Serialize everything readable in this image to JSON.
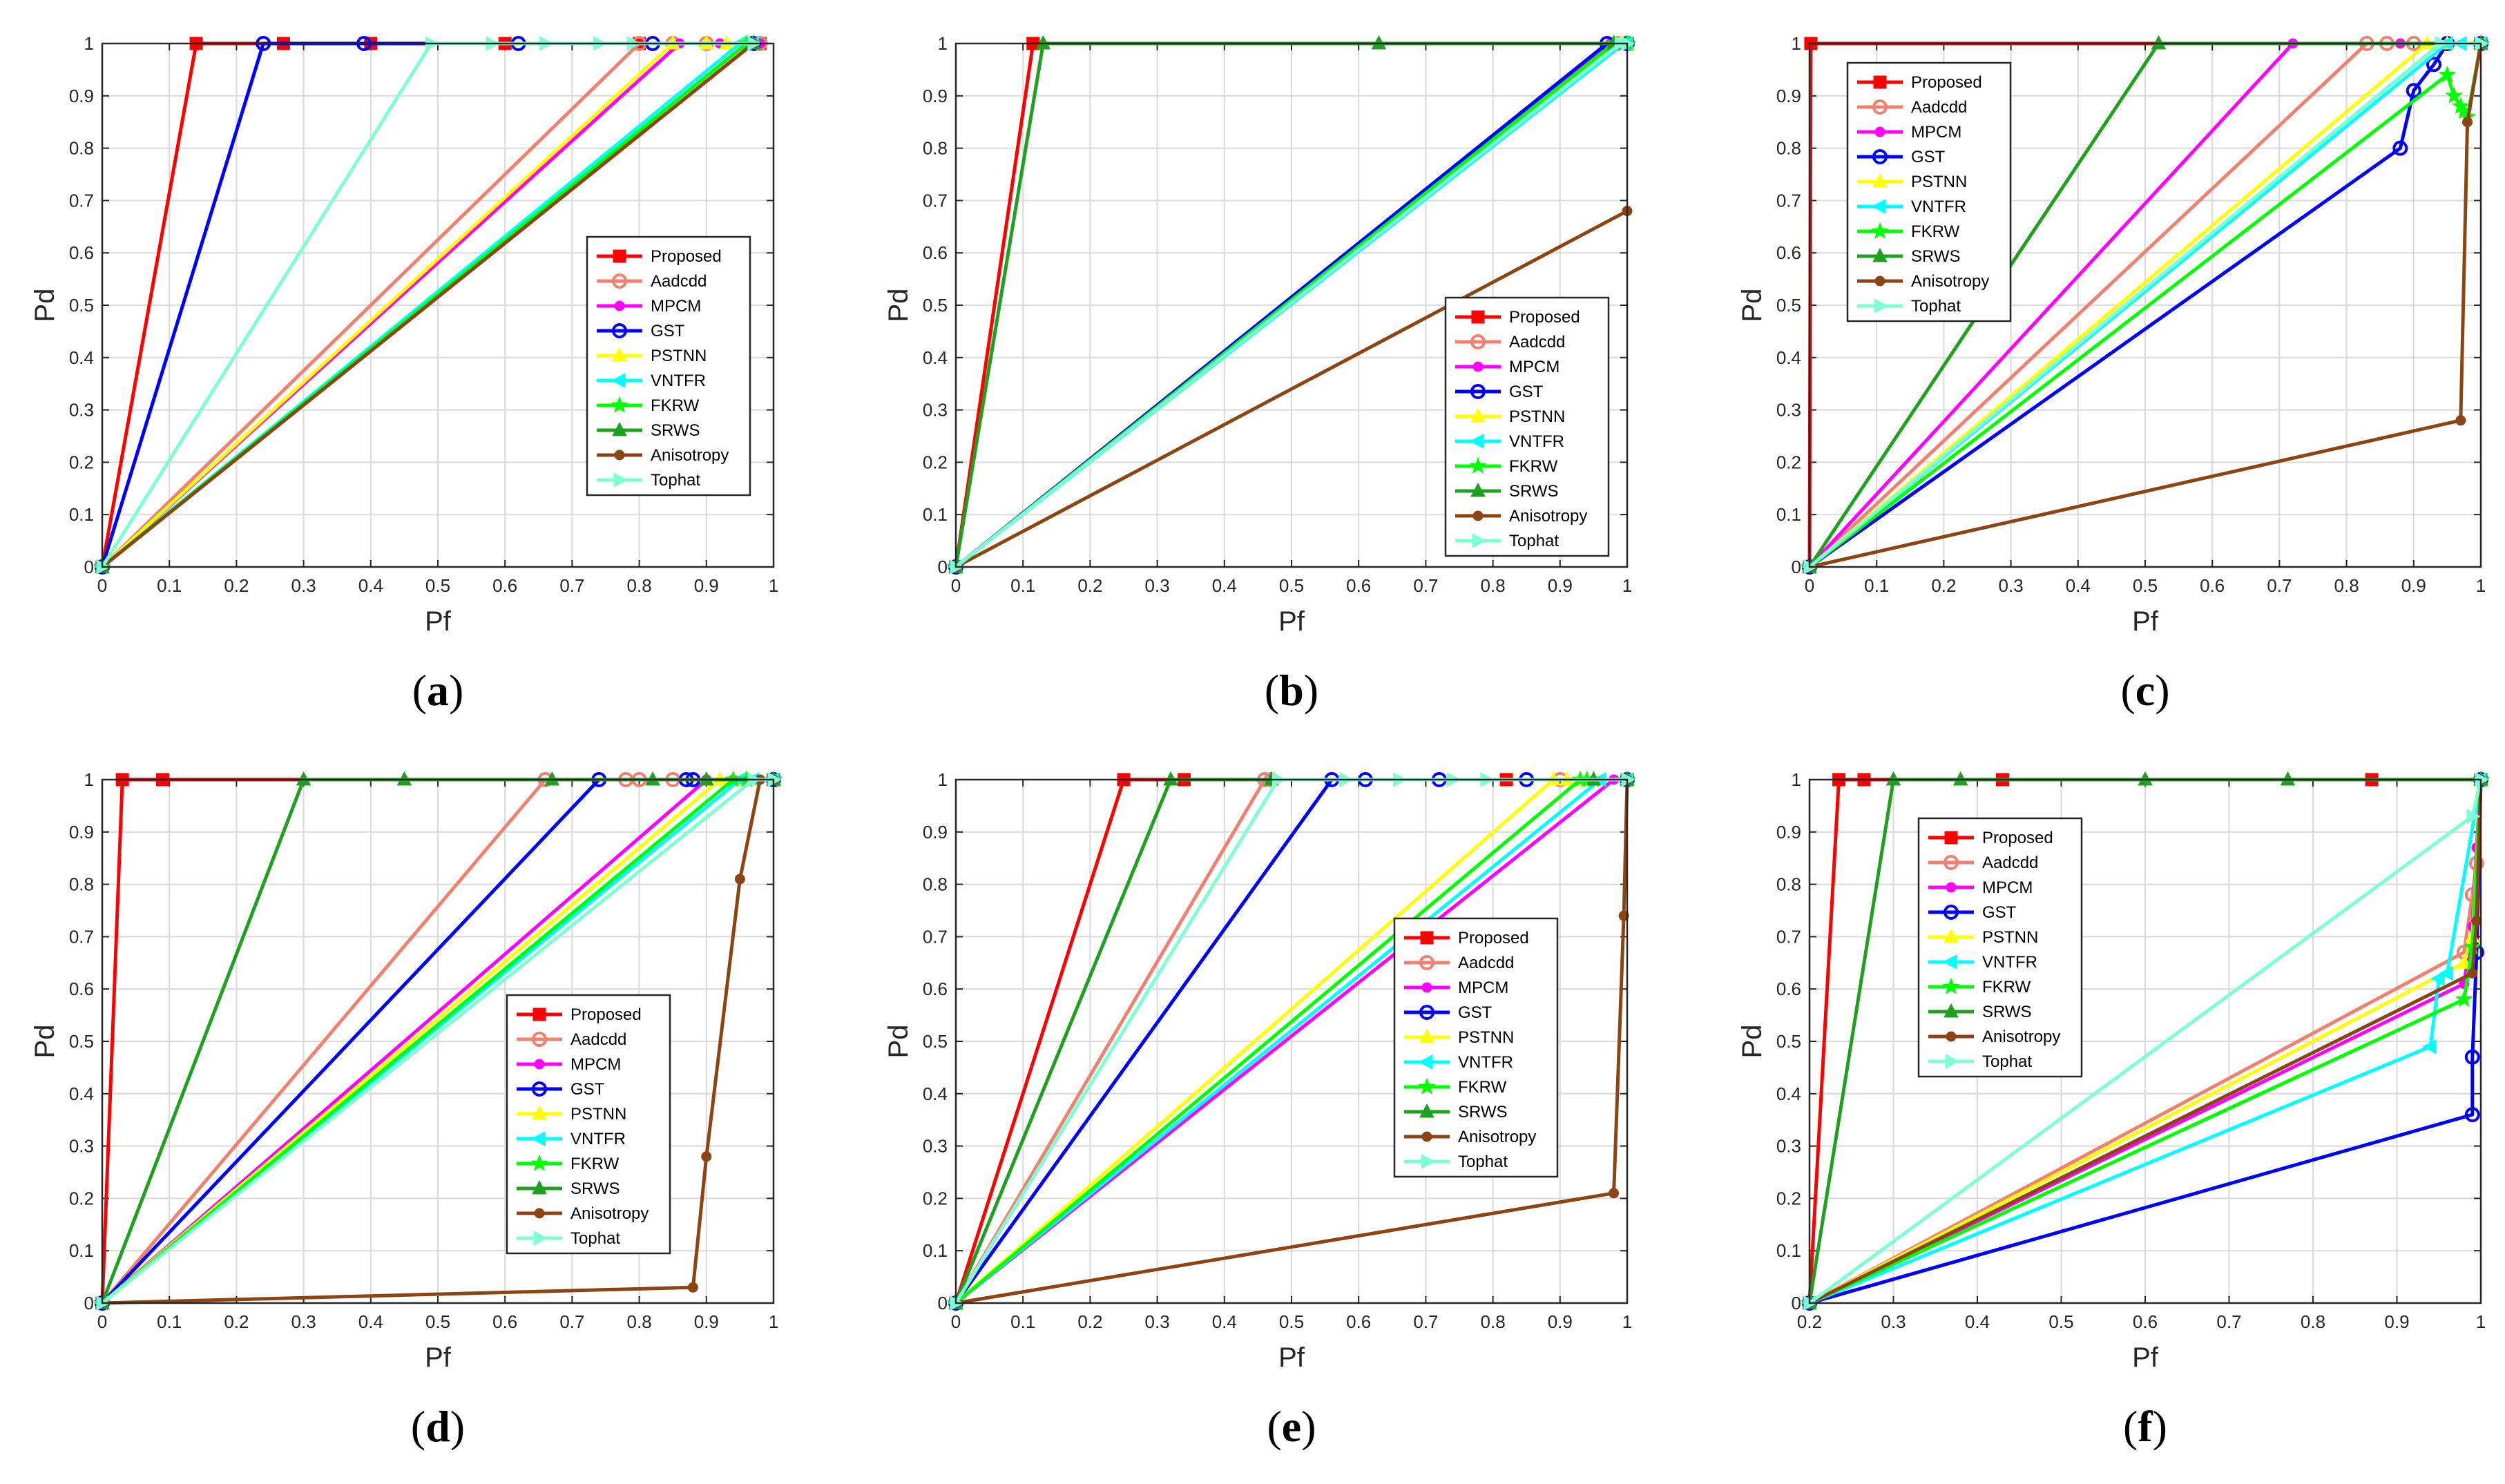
{
  "figure": {
    "series_styles": [
      {
        "name": "Proposed",
        "color": "#FF0000",
        "marker": "square"
      },
      {
        "name": "Aadcdd",
        "color": "#F08070",
        "marker": "circle"
      },
      {
        "name": "MPCM",
        "color": "#FF00FF",
        "marker": "dot"
      },
      {
        "name": "GST",
        "color": "#0000FF",
        "marker": "circle"
      },
      {
        "name": "PSTNN",
        "color": "#FFFF00",
        "marker": "triangle-up"
      },
      {
        "name": "VNTFR",
        "color": "#00FFFF",
        "marker": "triangle-left"
      },
      {
        "name": "FKRW",
        "color": "#00FF00",
        "marker": "star"
      },
      {
        "name": "SRWS",
        "color": "#20A020",
        "marker": "triangle-up"
      },
      {
        "name": "Anisotropy",
        "color": "#8B4513",
        "marker": "dot"
      },
      {
        "name": "Tophat",
        "color": "#7FFFD4",
        "marker": "triangle-right"
      }
    ]
  },
  "chart_data": [
    {
      "type": "line",
      "panel_label": "(a)",
      "xlabel": "Pf",
      "ylabel": "Pd",
      "xlim": [
        0,
        1
      ],
      "ylim": [
        0,
        1
      ],
      "xticks": [
        "0",
        "0.1",
        "0.2",
        "0.3",
        "0.4",
        "0.5",
        "0.6",
        "0.7",
        "0.8",
        "0.9",
        "1"
      ],
      "yticks": [
        "0",
        "0.1",
        "0.2",
        "0.3",
        "0.4",
        "0.5",
        "0.6",
        "0.7",
        "0.8",
        "0.9",
        "1"
      ],
      "grid": true,
      "legend_position": "center-right",
      "series": [
        {
          "name": "Proposed",
          "x": [
            0,
            0.14,
            0.27,
            0.4,
            0.6,
            0.8,
            0.98
          ],
          "y": [
            0,
            1,
            1,
            1,
            1,
            1,
            1
          ]
        },
        {
          "name": "Aadcdd",
          "x": [
            0,
            0.8,
            0.85,
            0.9,
            0.98
          ],
          "y": [
            0,
            1,
            1,
            1,
            1
          ]
        },
        {
          "name": "MPCM",
          "x": [
            0,
            0.86,
            0.92,
            0.98
          ],
          "y": [
            0,
            1,
            1,
            1
          ]
        },
        {
          "name": "GST",
          "x": [
            0,
            0.24,
            0.39,
            0.62,
            0.82,
            0.97
          ],
          "y": [
            0,
            1,
            1,
            1,
            1,
            1
          ]
        },
        {
          "name": "PSTNN",
          "x": [
            0,
            0.85,
            0.9,
            0.93,
            0.96
          ],
          "y": [
            0,
            1,
            1,
            1,
            1
          ]
        },
        {
          "name": "VNTFR",
          "x": [
            0,
            0.95,
            0.97
          ],
          "y": [
            0,
            1,
            1
          ]
        },
        {
          "name": "FKRW",
          "x": [
            0,
            0.96,
            0.97
          ],
          "y": [
            0,
            1,
            1
          ]
        },
        {
          "name": "SRWS",
          "x": [
            0,
            0.97
          ],
          "y": [
            0,
            1
          ]
        },
        {
          "name": "Anisotropy",
          "x": [
            0,
            0.97
          ],
          "y": [
            0,
            1
          ]
        },
        {
          "name": "Tophat",
          "x": [
            0,
            0.49,
            0.58,
            0.66,
            0.74,
            0.79,
            0.97
          ],
          "y": [
            0,
            1,
            1,
            1,
            1,
            1,
            1
          ]
        }
      ]
    },
    {
      "type": "line",
      "panel_label": "(b)",
      "xlabel": "Pf",
      "ylabel": "Pd",
      "xlim": [
        0,
        1
      ],
      "ylim": [
        0,
        1
      ],
      "xticks": [
        "0",
        "0.1",
        "0.2",
        "0.3",
        "0.4",
        "0.5",
        "0.6",
        "0.7",
        "0.8",
        "0.9",
        "1"
      ],
      "yticks": [
        "0",
        "0.1",
        "0.2",
        "0.3",
        "0.4",
        "0.5",
        "0.6",
        "0.7",
        "0.8",
        "0.9",
        "1"
      ],
      "grid": true,
      "legend_position": "bottom-right",
      "series": [
        {
          "name": "Proposed",
          "x": [
            0,
            0.115,
            1
          ],
          "y": [
            0,
            1,
            1
          ]
        },
        {
          "name": "Aadcdd",
          "x": [
            0,
            0.985,
            1
          ],
          "y": [
            0,
            1,
            1
          ]
        },
        {
          "name": "MPCM",
          "x": [
            0,
            0.975,
            1
          ],
          "y": [
            0,
            1,
            1
          ]
        },
        {
          "name": "GST",
          "x": [
            0,
            0.97,
            1
          ],
          "y": [
            0,
            1,
            1
          ]
        },
        {
          "name": "PSTNN",
          "x": [
            0,
            0.99,
            1
          ],
          "y": [
            0,
            1,
            1
          ]
        },
        {
          "name": "VNTFR",
          "x": [
            0,
            0.995,
            1
          ],
          "y": [
            0,
            1,
            1
          ]
        },
        {
          "name": "FKRW",
          "x": [
            0,
            0.98,
            1
          ],
          "y": [
            0,
            1,
            1
          ]
        },
        {
          "name": "SRWS",
          "x": [
            0,
            0.13,
            0.63,
            0.98
          ],
          "y": [
            0,
            1,
            1,
            1
          ]
        },
        {
          "name": "Anisotropy",
          "x": [
            0,
            1
          ],
          "y": [
            0,
            0.68
          ]
        },
        {
          "name": "Tophat",
          "x": [
            0,
            0.99,
            1
          ],
          "y": [
            0,
            1,
            1
          ]
        }
      ]
    },
    {
      "type": "line",
      "panel_label": "(c)",
      "xlabel": "Pf",
      "ylabel": "Pd",
      "xlim": [
        0,
        1
      ],
      "ylim": [
        0,
        1
      ],
      "xticks": [
        "0",
        "0.1",
        "0.2",
        "0.3",
        "0.4",
        "0.5",
        "0.6",
        "0.7",
        "0.8",
        "0.9",
        "1"
      ],
      "yticks": [
        "0",
        "0.1",
        "0.2",
        "0.3",
        "0.4",
        "0.5",
        "0.6",
        "0.7",
        "0.8",
        "0.9",
        "1"
      ],
      "grid": true,
      "legend_position": "top-left",
      "series": [
        {
          "name": "Proposed",
          "x": [
            0,
            0.002,
            1
          ],
          "y": [
            0,
            1,
            1
          ]
        },
        {
          "name": "Aadcdd",
          "x": [
            0,
            0.83,
            0.86,
            0.9,
            1
          ],
          "y": [
            0,
            1,
            1,
            1,
            1
          ]
        },
        {
          "name": "MPCM",
          "x": [
            0,
            0.72,
            0.88,
            1
          ],
          "y": [
            0,
            1,
            1,
            1
          ]
        },
        {
          "name": "GST",
          "x": [
            0,
            0.88,
            0.9,
            0.93,
            0.95,
            1
          ],
          "y": [
            0,
            0.8,
            0.91,
            0.96,
            1,
            1
          ]
        },
        {
          "name": "PSTNN",
          "x": [
            0,
            0.92,
            0.95,
            1
          ],
          "y": [
            0,
            1,
            1,
            1
          ]
        },
        {
          "name": "VNTFR",
          "x": [
            0,
            0.95,
            0.97,
            1
          ],
          "y": [
            0,
            1,
            1,
            1
          ]
        },
        {
          "name": "FKRW",
          "x": [
            0,
            0.95,
            0.96,
            0.97,
            0.975,
            0.98,
            1
          ],
          "y": [
            0,
            0.94,
            0.9,
            0.88,
            0.87,
            0.86,
            1
          ]
        },
        {
          "name": "SRWS",
          "x": [
            0,
            0.52,
            1
          ],
          "y": [
            0,
            1,
            1
          ]
        },
        {
          "name": "Anisotropy",
          "x": [
            0,
            0.97,
            0.98,
            1
          ],
          "y": [
            0,
            0.28,
            0.85,
            1
          ]
        },
        {
          "name": "Tophat",
          "x": [
            0,
            0.94,
            1
          ],
          "y": [
            0,
            1,
            1
          ]
        }
      ]
    },
    {
      "type": "line",
      "panel_label": "(d)",
      "xlabel": "Pf",
      "ylabel": "Pd",
      "xlim": [
        0,
        1
      ],
      "ylim": [
        0,
        1
      ],
      "xticks": [
        "0",
        "0.1",
        "0.2",
        "0.3",
        "0.4",
        "0.5",
        "0.6",
        "0.7",
        "0.8",
        "0.9",
        "1"
      ],
      "yticks": [
        "0",
        "0.1",
        "0.2",
        "0.3",
        "0.4",
        "0.5",
        "0.6",
        "0.7",
        "0.8",
        "0.9",
        "1"
      ],
      "grid": true,
      "legend_position": "bottom-right",
      "series": [
        {
          "name": "Proposed",
          "x": [
            0,
            0.03,
            0.09,
            1
          ],
          "y": [
            0,
            1,
            1,
            1
          ]
        },
        {
          "name": "Aadcdd",
          "x": [
            0,
            0.66,
            0.78,
            0.8,
            0.85,
            1
          ],
          "y": [
            0,
            1,
            1,
            1,
            1,
            1
          ]
        },
        {
          "name": "MPCM",
          "x": [
            0,
            0.9,
            0.94,
            1
          ],
          "y": [
            0,
            1,
            1,
            1
          ]
        },
        {
          "name": "GST",
          "x": [
            0,
            0.74,
            0.87,
            0.88,
            1
          ],
          "y": [
            0,
            1,
            1,
            1,
            1
          ]
        },
        {
          "name": "PSTNN",
          "x": [
            0,
            0.92,
            0.94,
            0.96,
            1
          ],
          "y": [
            0,
            1,
            1,
            1,
            1
          ]
        },
        {
          "name": "VNTFR",
          "x": [
            0,
            0.95,
            0.97,
            1
          ],
          "y": [
            0,
            1,
            1,
            1
          ]
        },
        {
          "name": "FKRW",
          "x": [
            0,
            0.94,
            0.96,
            1
          ],
          "y": [
            0,
            1,
            1,
            1
          ]
        },
        {
          "name": "SRWS",
          "x": [
            0,
            0.3,
            0.45,
            0.67,
            0.82,
            0.9,
            1
          ],
          "y": [
            0,
            1,
            1,
            1,
            1,
            1,
            1
          ]
        },
        {
          "name": "Anisotropy",
          "x": [
            0,
            0.88,
            0.9,
            0.95,
            0.98,
            1
          ],
          "y": [
            0,
            0.03,
            0.28,
            0.81,
            1,
            1
          ]
        },
        {
          "name": "Tophat",
          "x": [
            0,
            0.97,
            1
          ],
          "y": [
            0,
            1,
            1
          ]
        }
      ]
    },
    {
      "type": "line",
      "panel_label": "(e)",
      "xlabel": "Pf",
      "ylabel": "Pd",
      "xlim": [
        0,
        1
      ],
      "ylim": [
        0,
        1
      ],
      "xticks": [
        "0",
        "0.1",
        "0.2",
        "0.3",
        "0.4",
        "0.5",
        "0.6",
        "0.7",
        "0.8",
        "0.9",
        "1"
      ],
      "yticks": [
        "0",
        "0.1",
        "0.2",
        "0.3",
        "0.4",
        "0.5",
        "0.6",
        "0.7",
        "0.8",
        "0.9",
        "1"
      ],
      "grid": true,
      "legend_position": "center-right",
      "series": [
        {
          "name": "Proposed",
          "x": [
            0,
            0.25,
            0.34,
            0.82,
            1
          ],
          "y": [
            0,
            1,
            1,
            1,
            1
          ]
        },
        {
          "name": "Aadcdd",
          "x": [
            0,
            0.46,
            0.47,
            0.9,
            1
          ],
          "y": [
            0,
            1,
            1,
            1,
            1
          ]
        },
        {
          "name": "MPCM",
          "x": [
            0,
            0.98,
            1
          ],
          "y": [
            0,
            1,
            1
          ]
        },
        {
          "name": "GST",
          "x": [
            0,
            0.56,
            0.61,
            0.72,
            0.85,
            1
          ],
          "y": [
            0,
            1,
            1,
            1,
            1,
            1
          ]
        },
        {
          "name": "PSTNN",
          "x": [
            0,
            0.89,
            0.91,
            0.93,
            1
          ],
          "y": [
            0,
            1,
            1,
            1,
            1
          ]
        },
        {
          "name": "VNTFR",
          "x": [
            0,
            0.96,
            1
          ],
          "y": [
            0,
            1,
            1
          ]
        },
        {
          "name": "FKRW",
          "x": [
            0,
            0.93,
            0.94,
            0.95,
            1
          ],
          "y": [
            0,
            1,
            1,
            1,
            1
          ]
        },
        {
          "name": "SRWS",
          "x": [
            0,
            0.32,
            0.47,
            0.95,
            1
          ],
          "y": [
            0,
            1,
            1,
            1,
            1
          ]
        },
        {
          "name": "Anisotropy",
          "x": [
            0,
            0.98,
            0.995,
            1
          ],
          "y": [
            0,
            0.21,
            0.74,
            1
          ]
        },
        {
          "name": "Tophat",
          "x": [
            0,
            0.48,
            0.58,
            0.66,
            0.74,
            0.79,
            1
          ],
          "y": [
            0,
            1,
            1,
            1,
            1,
            1,
            1
          ]
        }
      ]
    },
    {
      "type": "line",
      "panel_label": "(f)",
      "xlabel": "Pf",
      "ylabel": "Pd",
      "xlim": [
        0.2,
        1
      ],
      "ylim": [
        0,
        1
      ],
      "xticks": [
        "0.2",
        "0.3",
        "0.4",
        "0.5",
        "0.6",
        "0.7",
        "0.8",
        "0.9",
        "1"
      ],
      "yticks": [
        "0",
        "0.1",
        "0.2",
        "0.3",
        "0.4",
        "0.5",
        "0.6",
        "0.7",
        "0.8",
        "0.9",
        "1"
      ],
      "grid": true,
      "legend_position": "center-left",
      "series": [
        {
          "name": "Proposed",
          "x": [
            0.2,
            0.235,
            0.265,
            0.43,
            0.87,
            1
          ],
          "y": [
            0,
            1,
            1,
            1,
            1,
            1
          ]
        },
        {
          "name": "Aadcdd",
          "x": [
            0.2,
            0.98,
            0.99,
            0.995,
            1
          ],
          "y": [
            0,
            0.67,
            0.78,
            0.84,
            1
          ]
        },
        {
          "name": "MPCM",
          "x": [
            0.2,
            0.98,
            0.99,
            0.995,
            1
          ],
          "y": [
            0,
            0.61,
            0.72,
            0.87,
            1
          ]
        },
        {
          "name": "GST",
          "x": [
            0.2,
            0.99,
            0.99,
            0.995,
            1
          ],
          "y": [
            0,
            0.36,
            0.47,
            0.67,
            1
          ]
        },
        {
          "name": "PSTNN",
          "x": [
            0.2,
            0.98,
            0.99,
            1
          ],
          "y": [
            0,
            0.65,
            0.7,
            1
          ]
        },
        {
          "name": "VNTFR",
          "x": [
            0.2,
            0.94,
            0.95,
            0.96,
            1
          ],
          "y": [
            0,
            0.49,
            0.62,
            0.63,
            1
          ]
        },
        {
          "name": "FKRW",
          "x": [
            0.2,
            0.98,
            0.99,
            1
          ],
          "y": [
            0,
            0.58,
            0.68,
            1
          ]
        },
        {
          "name": "SRWS",
          "x": [
            0.2,
            0.3,
            0.38,
            0.6,
            0.77,
            1
          ],
          "y": [
            0,
            1,
            1,
            1,
            1,
            1
          ]
        },
        {
          "name": "Anisotropy",
          "x": [
            0.2,
            0.99,
            0.995,
            1
          ],
          "y": [
            0,
            0.63,
            0.73,
            1
          ]
        },
        {
          "name": "Tophat",
          "x": [
            0.2,
            0.99,
            1
          ],
          "y": [
            0,
            0.93,
            1
          ]
        }
      ]
    }
  ]
}
